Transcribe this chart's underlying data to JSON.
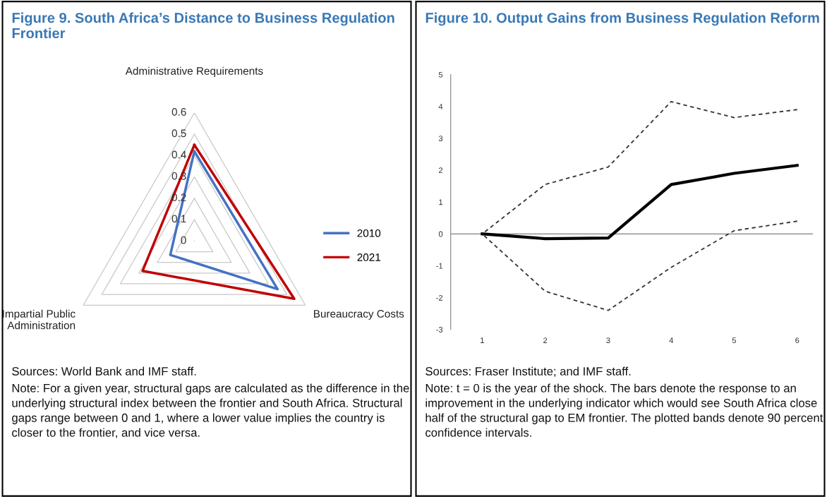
{
  "chart_data": [
    {
      "type": "radar",
      "title": "Figure 9. South Africa’s Distance to Business Regulation Frontier",
      "categories": [
        "Administrative Requirements",
        "Bureaucracy Costs",
        "Impartial Public Administration"
      ],
      "series": [
        {
          "name": "2010",
          "color": "#4472c4",
          "values": [
            0.42,
            0.45,
            0.13
          ]
        },
        {
          "name": "2021",
          "color": "#c00000",
          "values": [
            0.45,
            0.54,
            0.28
          ]
        }
      ],
      "ylim": [
        0,
        0.6
      ],
      "yticks": [
        0,
        0.1,
        0.2,
        0.3,
        0.4,
        0.5,
        0.6
      ],
      "grid": true,
      "legend": "right",
      "annotations": [
        "Sources: World Bank and IMF staff.",
        "Note: For a given year, structural gaps are calculated as the difference in the underlying structural index between the frontier and South Africa. Structural gaps range between 0 and 1, where a lower value implies the country is closer to the frontier, and vice versa."
      ]
    },
    {
      "type": "line",
      "title": "Figure 10. Output Gains from Business Regulation Reform",
      "categories": [
        "1",
        "2",
        "3",
        "4",
        "5",
        "6"
      ],
      "series": [
        {
          "color": "#000000",
          "line_style": "solid",
          "values": [
            0,
            -0.15,
            -0.13,
            1.55,
            1.9,
            2.15
          ]
        },
        {
          "color": "#333333",
          "line_style": "dashed",
          "values": [
            0,
            1.55,
            2.1,
            4.15,
            3.65,
            3.9
          ]
        },
        {
          "color": "#333333",
          "line_style": "dashed",
          "values": [
            0,
            -1.8,
            -2.4,
            -1.05,
            0.1,
            0.4
          ]
        }
      ],
      "ylim": [
        -3,
        5
      ],
      "yticks": [
        -3,
        -2,
        -1,
        0,
        1,
        2,
        3,
        4,
        5
      ],
      "grid": false,
      "ref_lines": [
        {
          "axis": "y",
          "value": 0,
          "color": "#808080"
        }
      ],
      "annotations": [
        "Sources: Fraser Institute; and IMF staff.",
        "Note: t = 0 is the year of the shock. The bars denote the response to an improvement in the underlying indicator which would see South Africa close half of the structural gap to EM frontier. The plotted bands denote 90 percent confidence intervals."
      ]
    }
  ]
}
